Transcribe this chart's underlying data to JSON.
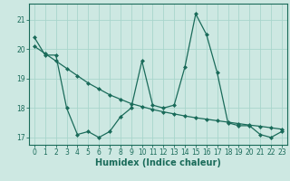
{
  "title": "",
  "xlabel": "Humidex (Indice chaleur)",
  "ylabel": "",
  "background_color": "#cde8e2",
  "grid_color": "#a8d5cc",
  "line_color": "#1a6b5a",
  "xlim": [
    -0.5,
    23.5
  ],
  "ylim": [
    16.75,
    21.55
  ],
  "x": [
    0,
    1,
    2,
    3,
    4,
    5,
    6,
    7,
    8,
    9,
    10,
    11,
    12,
    13,
    14,
    15,
    16,
    17,
    18,
    19,
    20,
    21,
    22,
    23
  ],
  "y_data": [
    20.4,
    19.8,
    19.8,
    18.0,
    17.1,
    17.2,
    17.0,
    17.2,
    17.7,
    18.0,
    19.6,
    18.1,
    18.0,
    18.1,
    19.4,
    21.2,
    20.5,
    19.2,
    17.5,
    17.4,
    17.4,
    17.1,
    17.0,
    17.2
  ],
  "y_trend": [
    20.1,
    19.85,
    19.6,
    19.35,
    19.1,
    18.85,
    18.65,
    18.45,
    18.3,
    18.15,
    18.05,
    17.95,
    17.87,
    17.8,
    17.73,
    17.67,
    17.62,
    17.57,
    17.52,
    17.47,
    17.42,
    17.38,
    17.33,
    17.28
  ],
  "yticks": [
    17,
    18,
    19,
    20,
    21
  ],
  "xticks": [
    0,
    1,
    2,
    3,
    4,
    5,
    6,
    7,
    8,
    9,
    10,
    11,
    12,
    13,
    14,
    15,
    16,
    17,
    18,
    19,
    20,
    21,
    22,
    23
  ],
  "tick_fontsize": 5.5,
  "xlabel_fontsize": 7,
  "marker": "D",
  "markersize": 2.0,
  "linewidth": 0.9
}
